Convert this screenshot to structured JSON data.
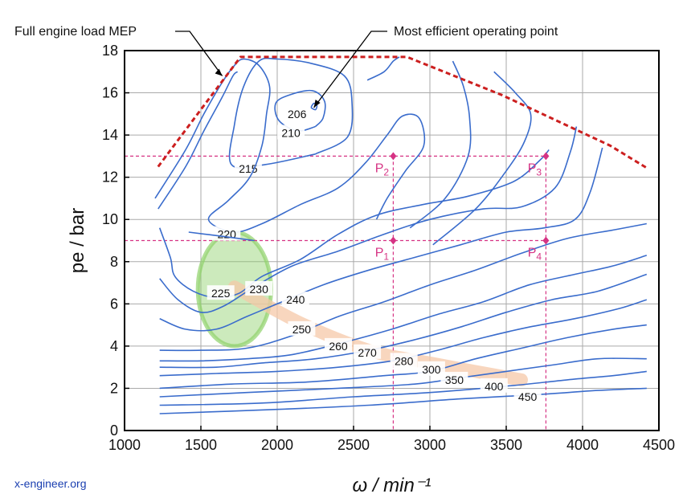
{
  "chart_data": {
    "type": "contour",
    "title": "",
    "xlabel": "ω / min⁻¹",
    "ylabel": "pe / bar",
    "xlim": [
      1000,
      4500
    ],
    "ylim": [
      0,
      18
    ],
    "xticks": [
      1000,
      1500,
      2000,
      2500,
      3000,
      3500,
      4000,
      4500
    ],
    "yticks": [
      0,
      2,
      4,
      6,
      8,
      10,
      12,
      14,
      16,
      18
    ],
    "grid": true,
    "full_load_mep": {
      "name": "Full engine load MEP",
      "color": "#cc1f1f",
      "points": [
        [
          1220,
          12.5
        ],
        [
          1520,
          15.4
        ],
        [
          1760,
          17.7
        ],
        [
          2850,
          17.7
        ],
        [
          3470,
          15.9
        ],
        [
          4180,
          13.5
        ],
        [
          4430,
          12.4
        ]
      ]
    },
    "contours": [
      {
        "label": "206",
        "label_at": [
          2130,
          15.0
        ],
        "points": [
          [
            2220,
            15.3
          ],
          [
            2240,
            15.5
          ],
          [
            2260,
            15.4
          ],
          [
            2250,
            15.2
          ],
          [
            2220,
            15.3
          ]
        ]
      },
      {
        "label": "210",
        "label_at": [
          2090,
          14.1
        ],
        "points": [
          [
            2250,
            14.4
          ],
          [
            2130,
            14.2
          ],
          [
            2010,
            14.7
          ],
          [
            1990,
            15.5
          ],
          [
            2080,
            15.9
          ],
          [
            2230,
            16.1
          ],
          [
            2310,
            15.6
          ],
          [
            2300,
            14.8
          ],
          [
            2250,
            14.4
          ]
        ]
      },
      {
        "label": "215",
        "label_at": [
          1810,
          12.4
        ],
        "points": [
          [
            2250,
            13.1
          ],
          [
            1920,
            12.6
          ],
          [
            1700,
            12.6
          ],
          [
            1720,
            14.5
          ],
          [
            1780,
            16.3
          ],
          [
            1880,
            17.5
          ],
          [
            2000,
            17.6
          ],
          [
            2220,
            17.4
          ],
          [
            2440,
            16.8
          ],
          [
            2490,
            15.5
          ],
          [
            2460,
            13.9
          ],
          [
            2250,
            13.1
          ]
        ]
      },
      {
        "label": "220",
        "label_at": [
          1670,
          9.3
        ],
        "points": [
          [
            1200,
            11.0
          ],
          [
            1400,
            13.3
          ],
          [
            1520,
            15.0
          ],
          [
            1640,
            16.5
          ],
          [
            1720,
            17.3
          ],
          [
            1780,
            17.6
          ],
          [
            1880,
            17.3
          ],
          [
            1950,
            16.3
          ],
          [
            1930,
            15.0
          ],
          [
            1900,
            13.5
          ],
          [
            1820,
            12.0
          ],
          [
            1680,
            10.9
          ],
          [
            1550,
            10.0
          ],
          [
            1710,
            9.4
          ],
          [
            1900,
            9.8
          ],
          [
            2150,
            10.7
          ],
          [
            2400,
            11.5
          ],
          [
            2580,
            12.7
          ],
          [
            2720,
            14.0
          ],
          [
            2820,
            14.9
          ],
          [
            2930,
            14.8
          ],
          [
            2960,
            13.5
          ],
          [
            2840,
            12.3
          ],
          [
            2720,
            11.0
          ],
          [
            2650,
            10.0
          ]
        ]
      },
      {
        "label": "",
        "label_at": [
          0,
          0
        ],
        "points": [
          [
            1220,
            10.5
          ],
          [
            1400,
            12.5
          ],
          [
            1520,
            14.2
          ],
          [
            1640,
            15.8
          ],
          [
            1710,
            16.8
          ],
          [
            1740,
            17.0
          ]
        ]
      },
      {
        "label": "",
        "label_at": [
          0,
          0
        ],
        "points": [
          [
            1420,
            9.4
          ],
          [
            1640,
            9.2
          ],
          [
            1850,
            9.0
          ]
        ]
      },
      {
        "label": "",
        "label_at": [
          0,
          0
        ],
        "points": [
          [
            2870,
            9.6
          ],
          [
            3100,
            11.0
          ],
          [
            3250,
            13.0
          ],
          [
            3260,
            14.8
          ],
          [
            3220,
            16.3
          ],
          [
            3150,
            17.5
          ]
        ]
      },
      {
        "label": "",
        "label_at": [
          0,
          0
        ],
        "points": [
          [
            3020,
            8.8
          ],
          [
            3300,
            10.5
          ],
          [
            3500,
            12.3
          ],
          [
            3620,
            13.7
          ],
          [
            3660,
            15.0
          ],
          [
            3560,
            16.0
          ],
          [
            3420,
            17.0
          ]
        ]
      },
      {
        "label": "",
        "label_at": [
          0,
          0
        ],
        "points": [
          [
            2590,
            16.6
          ],
          [
            2700,
            17.0
          ],
          [
            2760,
            17.5
          ],
          [
            2800,
            17.7
          ]
        ]
      },
      {
        "label": "225",
        "label_at": [
          1630,
          6.5
        ],
        "points": [
          [
            1230,
            9.6
          ],
          [
            1300,
            8.2
          ],
          [
            1330,
            7.3
          ],
          [
            1450,
            6.6
          ],
          [
            1600,
            6.3
          ],
          [
            1750,
            6.5
          ],
          [
            1900,
            7.3
          ],
          [
            2150,
            8.1
          ],
          [
            2400,
            9.3
          ],
          [
            2650,
            10.2
          ],
          [
            2950,
            10.7
          ],
          [
            3250,
            11.1
          ],
          [
            3550,
            11.8
          ],
          [
            3720,
            12.8
          ],
          [
            3780,
            13.3
          ]
        ]
      },
      {
        "label": "230",
        "label_at": [
          1880,
          6.7
        ],
        "points": [
          [
            1230,
            7.2
          ],
          [
            1350,
            6.2
          ],
          [
            1500,
            5.6
          ],
          [
            1650,
            5.9
          ],
          [
            1850,
            6.8
          ],
          [
            2100,
            7.8
          ],
          [
            2400,
            8.5
          ],
          [
            2700,
            9.3
          ],
          [
            3000,
            10.0
          ],
          [
            3350,
            10.5
          ],
          [
            3600,
            10.6
          ],
          [
            3820,
            11.5
          ],
          [
            3920,
            13.2
          ],
          [
            3960,
            14.4
          ]
        ]
      },
      {
        "label": "240",
        "label_at": [
          2120,
          6.2
        ],
        "points": [
          [
            1230,
            5.3
          ],
          [
            1400,
            4.8
          ],
          [
            1600,
            4.8
          ],
          [
            1800,
            5.4
          ],
          [
            2000,
            6.0
          ],
          [
            2300,
            6.9
          ],
          [
            2600,
            7.6
          ],
          [
            2900,
            8.2
          ],
          [
            3200,
            8.8
          ],
          [
            3500,
            9.4
          ],
          [
            3750,
            9.6
          ],
          [
            3950,
            10.0
          ],
          [
            4050,
            11.3
          ],
          [
            4130,
            13.4
          ]
        ]
      },
      {
        "label": "250",
        "label_at": [
          2160,
          4.8
        ],
        "points": [
          [
            1230,
            3.8
          ],
          [
            1500,
            3.8
          ],
          [
            1800,
            3.9
          ],
          [
            2100,
            4.5
          ],
          [
            2400,
            5.4
          ],
          [
            2700,
            6.1
          ],
          [
            3000,
            6.9
          ],
          [
            3300,
            7.6
          ],
          [
            3600,
            8.4
          ],
          [
            3900,
            9.1
          ],
          [
            4200,
            9.5
          ],
          [
            4420,
            9.8
          ]
        ]
      },
      {
        "label": "260",
        "label_at": [
          2400,
          4.0
        ],
        "points": [
          [
            1230,
            3.3
          ],
          [
            1500,
            3.3
          ],
          [
            1800,
            3.4
          ],
          [
            2100,
            3.6
          ],
          [
            2450,
            4.2
          ],
          [
            2750,
            4.8
          ],
          [
            3050,
            5.5
          ],
          [
            3350,
            6.1
          ],
          [
            3650,
            6.9
          ],
          [
            3950,
            7.4
          ],
          [
            4200,
            7.8
          ],
          [
            4420,
            8.3
          ]
        ]
      },
      {
        "label": "270",
        "label_at": [
          2590,
          3.7
        ],
        "points": [
          [
            1230,
            3.0
          ],
          [
            1600,
            3.0
          ],
          [
            1900,
            3.2
          ],
          [
            2250,
            3.4
          ],
          [
            2600,
            3.8
          ],
          [
            2900,
            4.3
          ],
          [
            3200,
            4.9
          ],
          [
            3500,
            5.6
          ],
          [
            3800,
            6.2
          ],
          [
            4100,
            6.6
          ],
          [
            4420,
            7.4
          ]
        ]
      },
      {
        "label": "280",
        "label_at": [
          2830,
          3.3
        ],
        "points": [
          [
            1230,
            2.6
          ],
          [
            1600,
            2.7
          ],
          [
            2000,
            2.8
          ],
          [
            2400,
            3.0
          ],
          [
            2750,
            3.3
          ],
          [
            3050,
            3.8
          ],
          [
            3350,
            4.4
          ],
          [
            3650,
            4.9
          ],
          [
            3950,
            5.3
          ],
          [
            4250,
            5.8
          ],
          [
            4420,
            6.2
          ]
        ]
      },
      {
        "label": "300",
        "label_at": [
          3010,
          2.9
        ],
        "points": [
          [
            1230,
            2.0
          ],
          [
            1700,
            2.2
          ],
          [
            2200,
            2.3
          ],
          [
            2700,
            2.6
          ],
          [
            3000,
            2.8
          ],
          [
            3300,
            3.4
          ],
          [
            3600,
            3.9
          ],
          [
            3900,
            4.4
          ],
          [
            4200,
            4.8
          ],
          [
            4420,
            5.0
          ]
        ]
      },
      {
        "label": "350",
        "label_at": [
          3160,
          2.4
        ],
        "points": [
          [
            1230,
            1.6
          ],
          [
            1800,
            1.8
          ],
          [
            2400,
            2.0
          ],
          [
            2900,
            2.2
          ],
          [
            3200,
            2.5
          ],
          [
            3500,
            2.8
          ],
          [
            3800,
            3.1
          ],
          [
            4100,
            3.4
          ],
          [
            4420,
            3.4
          ]
        ]
      },
      {
        "label": "400",
        "label_at": [
          3420,
          2.1
        ],
        "points": [
          [
            1230,
            1.2
          ],
          [
            1900,
            1.3
          ],
          [
            2500,
            1.6
          ],
          [
            3000,
            1.8
          ],
          [
            3500,
            2.1
          ],
          [
            3900,
            2.4
          ],
          [
            4200,
            2.6
          ],
          [
            4420,
            2.8
          ]
        ]
      },
      {
        "label": "450",
        "label_at": [
          3640,
          1.6
        ],
        "points": [
          [
            1230,
            0.8
          ],
          [
            2000,
            1.0
          ],
          [
            2600,
            1.2
          ],
          [
            3200,
            1.5
          ],
          [
            3700,
            1.7
          ],
          [
            4100,
            1.9
          ],
          [
            4420,
            2.0
          ]
        ]
      }
    ],
    "operating_points": [
      {
        "name": "P",
        "sub": "1",
        "x": 2760,
        "y": 9.0
      },
      {
        "name": "P",
        "sub": "2",
        "x": 2760,
        "y": 13.0
      },
      {
        "name": "P",
        "sub": "3",
        "x": 3760,
        "y": 13.0
      },
      {
        "name": "P",
        "sub": "4",
        "x": 3760,
        "y": 9.0
      }
    ],
    "reference_lines": {
      "x": [
        2760,
        3760
      ],
      "y": [
        9.0,
        13.0
      ],
      "color": "#d63384"
    },
    "efficient_region": {
      "center": [
        1720,
        6.7
      ],
      "radius_x": 240,
      "radius_y": 2.7,
      "color": "#8fd16a"
    },
    "efficiency_band": {
      "points": [
        [
          1720,
          6.8
        ],
        [
          2150,
          5.1
        ],
        [
          2600,
          3.8
        ],
        [
          3000,
          3.2
        ],
        [
          3600,
          2.4
        ]
      ],
      "color": "#f6c8a8"
    },
    "annotations": [
      {
        "text": "Full engine load MEP",
        "target": [
          1640,
          16.8
        ]
      },
      {
        "text": "Most efficient operating point",
        "target": [
          2240,
          15.3
        ]
      }
    ]
  },
  "watermark": "x-engineer.org",
  "colors": {
    "contour": "#3a6ccc",
    "grid": "#aaaaaa",
    "full_load": "#cc1f1f",
    "points": "#d63384",
    "watermark": "#1a3fb0"
  }
}
